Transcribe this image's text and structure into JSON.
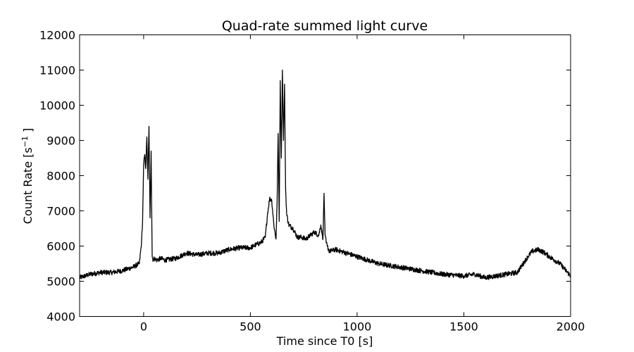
{
  "chart_data": {
    "type": "line",
    "title": "Quad-rate summed light curve",
    "xlabel": "Time since T0 [s]",
    "ylabel_main": "Count Rate [s",
    "ylabel_sup": "−1",
    "ylabel_end": " ]",
    "xlim": [
      -300,
      2000
    ],
    "ylim": [
      4000,
      12000
    ],
    "x_ticks": [
      0,
      500,
      1000,
      1500,
      2000
    ],
    "x_tick_labels": [
      "0",
      "500",
      "1000",
      "1500",
      "2000"
    ],
    "y_ticks": [
      4000,
      5000,
      6000,
      7000,
      8000,
      9000,
      10000,
      11000,
      12000
    ],
    "y_tick_labels": [
      "4000",
      "5000",
      "6000",
      "7000",
      "8000",
      "9000",
      "10000",
      "11000",
      "12000"
    ],
    "grid": false,
    "series": [
      {
        "color": "#000000",
        "x": [
          -300,
          -250,
          -200,
          -150,
          -100,
          -50,
          -20,
          -10,
          -5,
          0,
          5,
          10,
          15,
          20,
          25,
          30,
          35,
          40,
          45,
          50,
          60,
          80,
          100,
          150,
          200,
          250,
          300,
          350,
          400,
          450,
          500,
          530,
          550,
          570,
          580,
          590,
          600,
          610,
          620,
          625,
          630,
          635,
          640,
          645,
          650,
          655,
          660,
          665,
          670,
          680,
          700,
          720,
          740,
          760,
          780,
          800,
          820,
          830,
          840,
          845,
          850,
          855,
          860,
          870,
          900,
          950,
          1000,
          1050,
          1100,
          1200,
          1300,
          1400,
          1500,
          1550,
          1600,
          1650,
          1700,
          1750,
          1800,
          1820,
          1850,
          1880,
          1900,
          1950,
          2000
        ],
        "y": [
          5100,
          5200,
          5250,
          5250,
          5300,
          5400,
          5500,
          6100,
          6700,
          8300,
          8600,
          8200,
          9100,
          7900,
          9400,
          6800,
          8700,
          5700,
          5600,
          5650,
          5600,
          5650,
          5600,
          5650,
          5800,
          5750,
          5800,
          5800,
          5900,
          5950,
          5950,
          6050,
          6100,
          6250,
          6900,
          7350,
          7300,
          6600,
          6200,
          7200,
          9200,
          6700,
          10700,
          8500,
          11000,
          9000,
          10600,
          7600,
          6900,
          6600,
          6500,
          6250,
          6250,
          6200,
          6300,
          6400,
          6300,
          6600,
          6200,
          7500,
          6300,
          6100,
          6000,
          5850,
          5900,
          5800,
          5700,
          5600,
          5500,
          5400,
          5300,
          5200,
          5150,
          5200,
          5100,
          5150,
          5200,
          5250,
          5700,
          5850,
          5900,
          5800,
          5700,
          5500,
          5150
        ]
      }
    ]
  }
}
